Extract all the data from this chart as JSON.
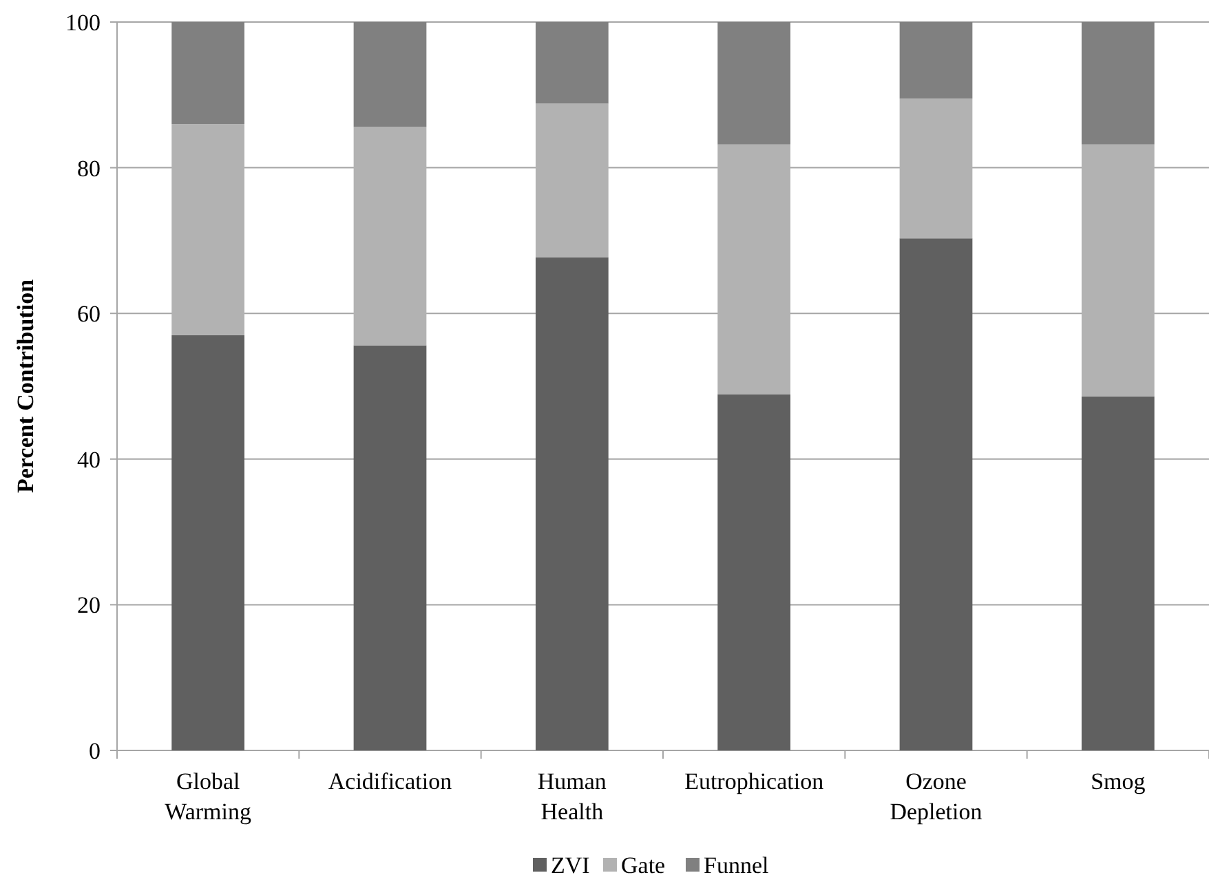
{
  "chart_data": {
    "type": "bar",
    "stacked": true,
    "ylabel": "Percent Contribution",
    "categories": [
      "Global\nWarming",
      "Acidification",
      "Human\nHealth",
      "Eutrophication",
      "Ozone\nDepletion",
      "Smog"
    ],
    "series": [
      {
        "name": "ZVI",
        "color": "#606060",
        "values": [
          57.0,
          55.6,
          67.7,
          48.9,
          70.3,
          48.6
        ]
      },
      {
        "name": "Gate",
        "color": "#b2b2b2",
        "values": [
          29.0,
          30.0,
          21.1,
          34.3,
          19.2,
          34.6
        ]
      },
      {
        "name": "Funnel",
        "color": "#808080",
        "values": [
          14.0,
          14.4,
          11.2,
          16.8,
          10.5,
          16.8
        ]
      }
    ],
    "ylim": [
      0,
      100
    ],
    "yticks": [
      0,
      20,
      40,
      60,
      80,
      100
    ],
    "grid": "y",
    "legend": "bottom"
  }
}
